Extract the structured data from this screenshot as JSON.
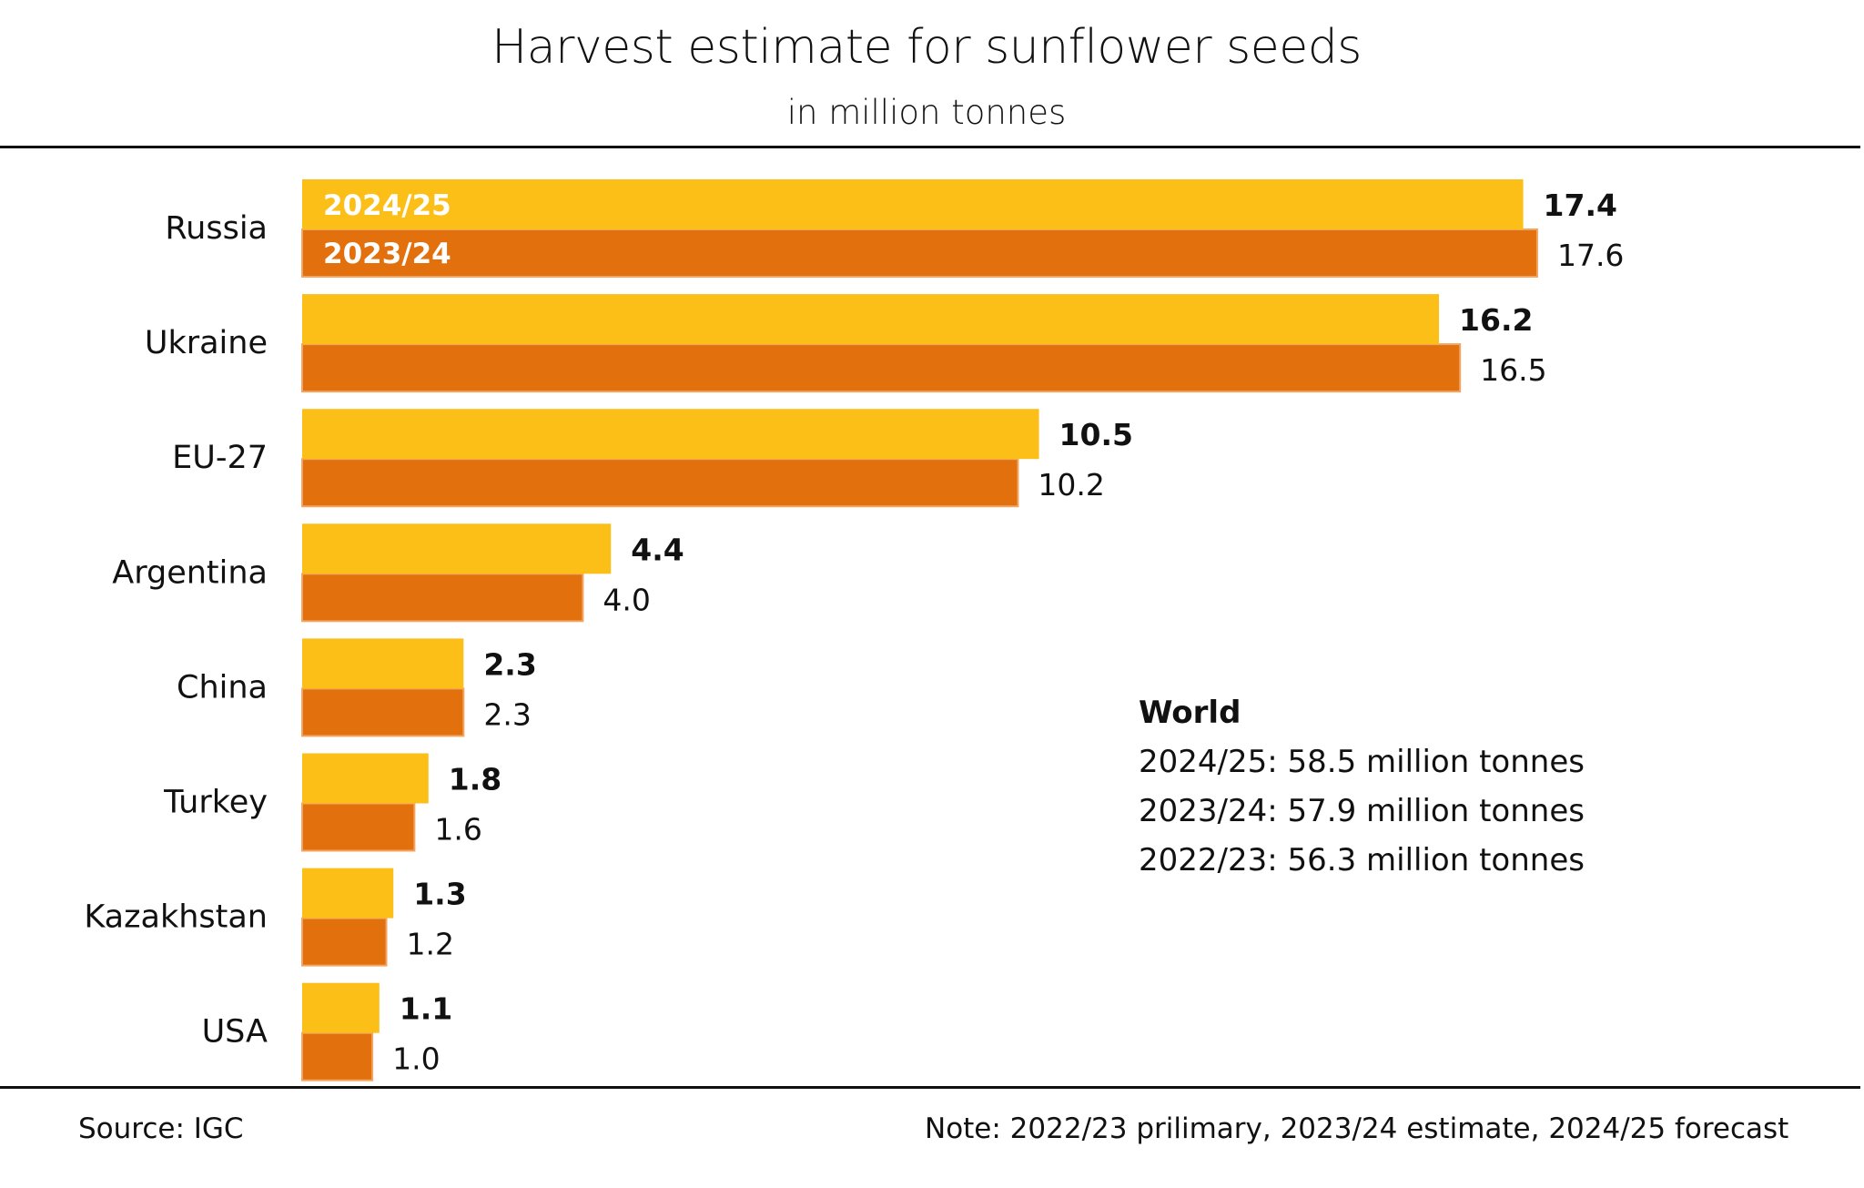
{
  "title": "Harvest estimate for sunflower seeds",
  "subtitle": "in million tonnes",
  "colors": {
    "series_2024_25": "#FBBF17",
    "series_2023_24": "#E2700C",
    "series_2023_24_edge": "#F4A462"
  },
  "world": {
    "heading": "World",
    "lines": [
      "2024/25: 58.5 million tonnes",
      "2023/24: 57.9 million tonnes",
      "2022/23: 56.3 million tonnes"
    ]
  },
  "footer": {
    "source": "Source:  IGC",
    "note": "Note: 2022/23 prilimary, 2023/24 estimate, 2024/25 forecast"
  },
  "chart_data": {
    "type": "bar",
    "orientation": "horizontal",
    "title": "Harvest estimate for sunflower seeds",
    "subtitle": "in million tonnes",
    "xlabel": "",
    "ylabel": "",
    "xlim": [
      0,
      17.6
    ],
    "grid": false,
    "legend": "inside-first-bar",
    "categories": [
      "Russia",
      "Ukraine",
      "EU-27",
      "Argentina",
      "China",
      "Turkey",
      "Kazakhstan",
      "USA"
    ],
    "series": [
      {
        "name": "2024/25",
        "values": [
          17.4,
          16.2,
          10.5,
          4.4,
          2.3,
          1.8,
          1.3,
          1.1
        ],
        "labels": [
          "17.4",
          "16.2",
          "10.5",
          "4.4",
          "2.3",
          "1.8",
          "1.3",
          "1.1"
        ]
      },
      {
        "name": "2023/24",
        "values": [
          17.6,
          16.5,
          10.2,
          4.0,
          2.3,
          1.6,
          1.2,
          1.0
        ],
        "labels": [
          "17.6",
          "16.5",
          "10.2",
          "4.0",
          "2.3",
          "1.6",
          "1.2",
          "1.0"
        ]
      }
    ]
  }
}
